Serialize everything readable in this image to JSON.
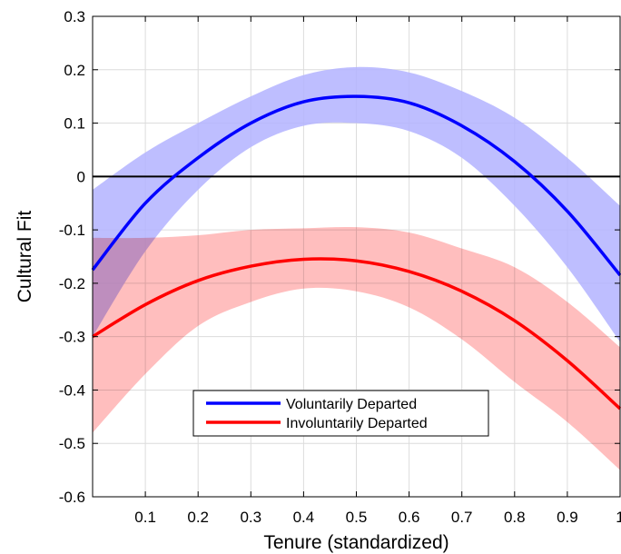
{
  "chart_data": {
    "type": "line",
    "xlabel": "Tenure (standardized)",
    "ylabel": "Cultural Fit",
    "xlim": [
      0,
      1
    ],
    "ylim": [
      -0.6,
      0.3
    ],
    "xticks": [
      0.1,
      0.2,
      0.3,
      0.4,
      0.5,
      0.6,
      0.7,
      0.8,
      0.9,
      1
    ],
    "xtick_labels": [
      "0.1",
      "0.2",
      "0.3",
      "0.4",
      "0.5",
      "0.6",
      "0.7",
      "0.8",
      "0.9",
      "1"
    ],
    "yticks": [
      -0.6,
      -0.5,
      -0.4,
      -0.3,
      -0.2,
      -0.1,
      0,
      0.1,
      0.2,
      0.3
    ],
    "ytick_labels": [
      "-0.6",
      "-0.5",
      "-0.4",
      "-0.3",
      "-0.2",
      "-0.1",
      "0",
      "0.1",
      "0.2",
      "0.3"
    ],
    "grid": true,
    "reference_line": {
      "y": 0,
      "color": "#000000"
    },
    "legend_position": "lower-center",
    "x": [
      0,
      0.1,
      0.2,
      0.3,
      0.4,
      0.5,
      0.6,
      0.7,
      0.8,
      0.9,
      1
    ],
    "series": [
      {
        "name": "Voluntarily Departed",
        "color": "#0000ff",
        "band_color": "#b3b3ff",
        "values": [
          -0.175,
          -0.05,
          0.035,
          0.1,
          0.14,
          0.15,
          0.138,
          0.095,
          0.028,
          -0.065,
          -0.185
        ],
        "lower": [
          -0.3,
          -0.14,
          -0.025,
          0.055,
          0.095,
          0.1,
          0.085,
          0.035,
          -0.055,
          -0.17,
          -0.31
        ],
        "upper": [
          -0.025,
          0.045,
          0.1,
          0.15,
          0.19,
          0.205,
          0.195,
          0.16,
          0.11,
          0.035,
          -0.055
        ]
      },
      {
        "name": "Involuntarily Departed",
        "color": "#ff0000",
        "band_color": "#ffb3b3",
        "values": [
          -0.3,
          -0.24,
          -0.195,
          -0.168,
          -0.155,
          -0.158,
          -0.178,
          -0.215,
          -0.27,
          -0.345,
          -0.435
        ],
        "lower": [
          -0.48,
          -0.37,
          -0.28,
          -0.235,
          -0.21,
          -0.215,
          -0.245,
          -0.305,
          -0.385,
          -0.46,
          -0.55
        ],
        "upper": [
          -0.115,
          -0.115,
          -0.11,
          -0.1,
          -0.097,
          -0.095,
          -0.105,
          -0.135,
          -0.17,
          -0.235,
          -0.32
        ]
      }
    ]
  }
}
